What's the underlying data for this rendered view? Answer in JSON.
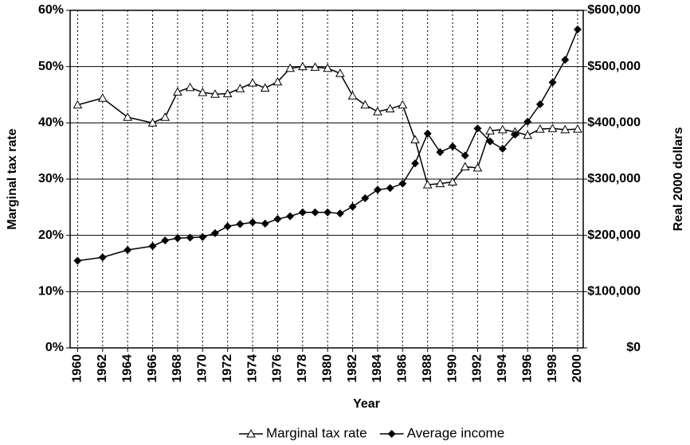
{
  "chart_data": {
    "type": "line",
    "x_label": "Year",
    "y_label": "Marginal tax rate",
    "y2_label": "Real 2000 dollars",
    "x": [
      1960,
      1962,
      1964,
      1966,
      1967,
      1968,
      1969,
      1970,
      1971,
      1972,
      1973,
      1974,
      1975,
      1976,
      1977,
      1978,
      1979,
      1980,
      1981,
      1982,
      1983,
      1984,
      1985,
      1986,
      1987,
      1988,
      1989,
      1990,
      1991,
      1992,
      1993,
      1994,
      1995,
      1996,
      1997,
      1998,
      1999,
      2000
    ],
    "series": [
      {
        "name": "Marginal tax rate",
        "color": "#000000",
        "marker": "triangle-open",
        "values": [
          43.2,
          44.4,
          41,
          40,
          41,
          45.5,
          46.3,
          45.4,
          45.1,
          45.2,
          46.1,
          47.1,
          46.2,
          47.3,
          49.7,
          50,
          49.9,
          49.7,
          48.8,
          44.8,
          43.2,
          42,
          42.5,
          43.2,
          37,
          29,
          29.2,
          29.5,
          32.2,
          32,
          38.6,
          38.8,
          38.4,
          37.8,
          38.9,
          39,
          38.8,
          38.9
        ]
      },
      {
        "name": "Average income",
        "color": "#000000",
        "marker": "diamond-filled",
        "axis": "y2",
        "values": [
          155000,
          161000,
          174000,
          181000,
          191000,
          195000,
          196000,
          197000,
          204000,
          216000,
          220000,
          223000,
          221000,
          229000,
          234000,
          241000,
          241000,
          241000,
          239000,
          251000,
          266000,
          281000,
          284000,
          292000,
          328000,
          381000,
          348000,
          358000,
          342000,
          390000,
          367000,
          354000,
          379000,
          402000,
          433000,
          472000,
          512000,
          566000
        ]
      }
    ],
    "xlim": [
      1959.4,
      2000.45
    ],
    "xticks": [
      1960,
      1962,
      1964,
      1966,
      1968,
      1970,
      1972,
      1974,
      1976,
      1978,
      1980,
      1982,
      1984,
      1986,
      1988,
      1990,
      1992,
      1994,
      1996,
      1998,
      2000
    ],
    "ylim": [
      0,
      60
    ],
    "yticks": [
      {
        "value": 0,
        "label": "0%"
      },
      {
        "value": 10,
        "label": "10%"
      },
      {
        "value": 20,
        "label": "20%"
      },
      {
        "value": 30,
        "label": "30%"
      },
      {
        "value": 40,
        "label": "40%"
      },
      {
        "value": 50,
        "label": "50%"
      },
      {
        "value": 60,
        "label": "60%"
      }
    ],
    "y2lim": [
      0,
      600000
    ],
    "y2ticks": [
      {
        "value": 0,
        "label": "$0"
      },
      {
        "value": 100000,
        "label": "$100,000"
      },
      {
        "value": 200000,
        "label": "$200,000"
      },
      {
        "value": 300000,
        "label": "$300,000"
      },
      {
        "value": 400000,
        "label": "$400,000"
      },
      {
        "value": 500000,
        "label": "$500,000"
      },
      {
        "value": 600000,
        "label": "$600,000"
      }
    ],
    "grid": true,
    "legend": "bottom"
  }
}
